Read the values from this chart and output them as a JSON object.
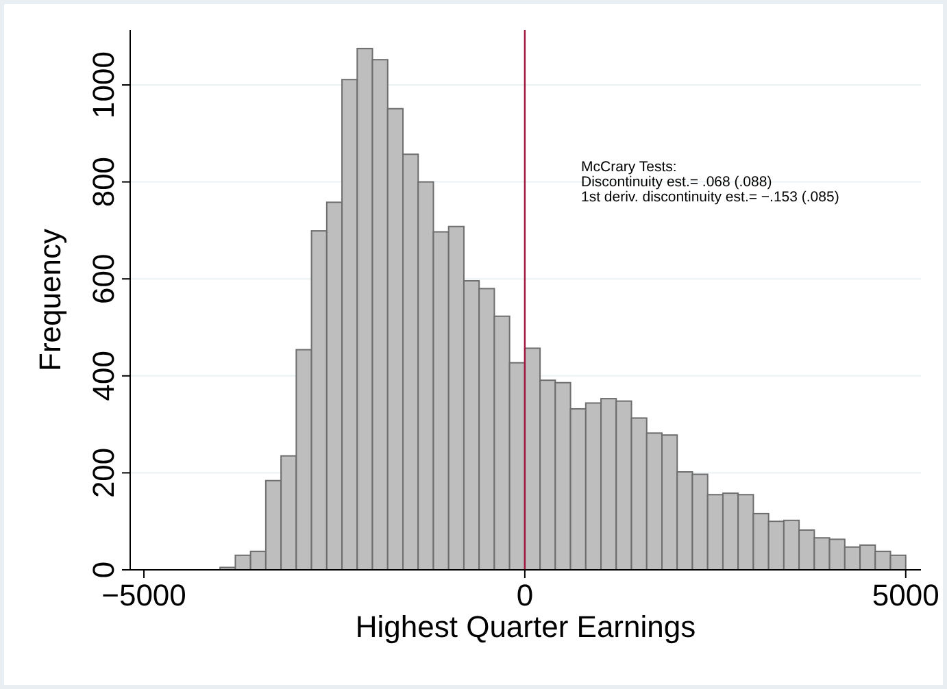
{
  "chart_data": {
    "type": "histogram",
    "xlabel": "Highest Quarter Earnings",
    "ylabel": "Frequency",
    "bins": [
      -4000,
      -3800,
      -3600,
      -3400,
      -3200,
      -3000,
      -2800,
      -2600,
      -2400,
      -2200,
      -2000,
      -1800,
      -1600,
      -1400,
      -1200,
      -1000,
      -800,
      -600,
      -400,
      -200,
      0,
      200,
      400,
      600,
      800,
      1000,
      1200,
      1400,
      1600,
      1800,
      2000,
      2200,
      2400,
      2600,
      2800,
      3000,
      3200,
      3400,
      3600,
      3800,
      4000,
      4200,
      4400,
      4600,
      4800,
      5000
    ],
    "values": [
      5,
      30,
      38,
      184,
      235,
      454,
      699,
      758,
      1011,
      1075,
      1052,
      951,
      857,
      800,
      697,
      708,
      596,
      580,
      523,
      427,
      457,
      391,
      386,
      332,
      344,
      353,
      348,
      313,
      282,
      278,
      202,
      197,
      155,
      158,
      155,
      116,
      100,
      102,
      82,
      66,
      63,
      47,
      51,
      38,
      30
    ],
    "color": "#bebebe",
    "xlim": [
      -5180,
      5200
    ],
    "ylim": [
      0,
      1113
    ],
    "xticks": [
      -5000,
      0,
      5000
    ],
    "yticks": [
      0,
      200,
      400,
      600,
      800,
      1000
    ],
    "grid": "y",
    "ref_lines": [
      {
        "axis": "x",
        "value": 0,
        "color": "#a0143c"
      }
    ],
    "annotations": [
      "McCrary Tests:",
      "Discontinuity est.= .068 (.088)",
      "1st deriv. discontinuity est.= −.153 (.085)"
    ]
  }
}
